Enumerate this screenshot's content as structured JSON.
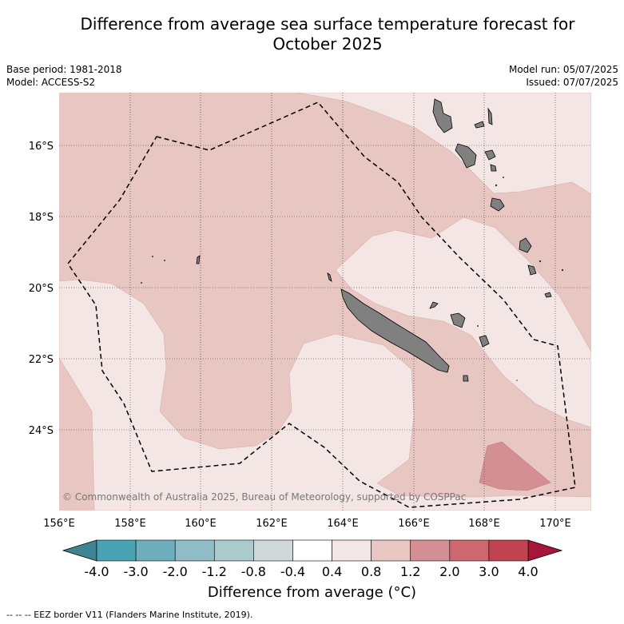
{
  "title_line1": "Difference from average sea surface temperature forecast for",
  "title_line2": "October 2025",
  "base_period": "Base period: 1981-2018",
  "model": "Model: ACCESS-S2",
  "model_run": "Model run: 05/07/2025",
  "issued": "Issued: 07/07/2025",
  "copyright": "© Commonwealth of Australia 2025, Bureau of Meteorology, supported by COSPPac",
  "lat_labels": [
    "16°S",
    "18°S",
    "20°S",
    "22°S",
    "24°S"
  ],
  "lon_labels": [
    "156°E",
    "158°E",
    "160°E",
    "162°E",
    "164°E",
    "166°E",
    "168°E",
    "170°E"
  ],
  "colorbar": {
    "tick_labels": [
      "-4.0",
      "-3.0",
      "-2.0",
      "-1.2",
      "-0.8",
      "-0.4",
      "0.4",
      "0.8",
      "1.2",
      "2.0",
      "3.0",
      "4.0"
    ],
    "colors": [
      "#4aa3b4",
      "#6eafbe",
      "#8fbcc7",
      "#aacacd",
      "#d0d9da",
      "#ffffff",
      "#f4e6e5",
      "#e8c6c1",
      "#d48f95",
      "#cd6770",
      "#c0444f"
    ],
    "extend_low": "#3d8593",
    "extend_high": "#a8153a",
    "label": "Difference from average (°C)"
  },
  "footnote": "-- -- -- EEZ border V11 (Flanders Marine Institute, 2019).",
  "colors": {
    "light_anomaly": "#f4e6e5",
    "medium_anomaly": "#e8c6c1",
    "strong_anomaly": "#d48f95",
    "land": "#808080"
  }
}
